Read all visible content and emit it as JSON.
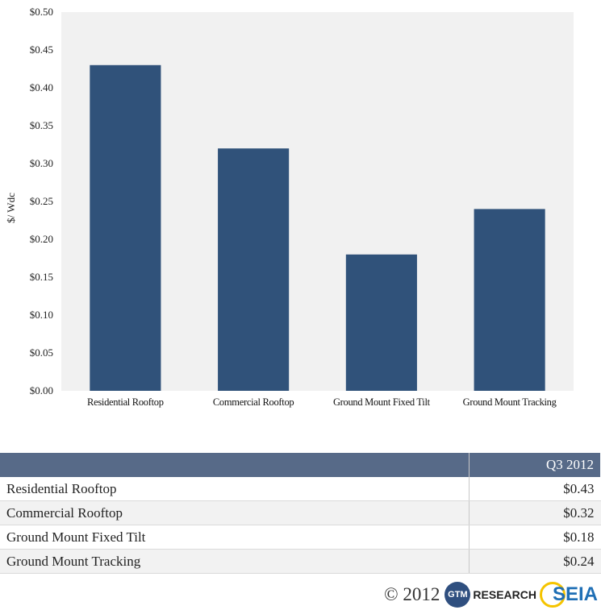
{
  "chart_data": {
    "type": "bar",
    "categories": [
      "Residential Rooftop",
      "Commercial Rooftop",
      "Ground Mount Fixed Tilt",
      "Ground Mount Tracking"
    ],
    "values": [
      0.43,
      0.32,
      0.18,
      0.24
    ],
    "ylabel": "$/ Wdc",
    "ylim": [
      0,
      0.5
    ],
    "yticks": [
      "$0.00",
      "$0.05",
      "$0.10",
      "$0.15",
      "$0.20",
      "$0.25",
      "$0.30",
      "$0.35",
      "$0.40",
      "$0.45",
      "$0.50"
    ],
    "grid": false,
    "bar_color": "#30527a",
    "plot_background": "#f1f1f1"
  },
  "table": {
    "column_header": "Q3 2012",
    "rows": [
      {
        "label": "Residential Rooftop",
        "value": "$0.43"
      },
      {
        "label": "Commercial Rooftop",
        "value": "$0.32"
      },
      {
        "label": "Ground Mount Fixed Tilt",
        "value": "$0.18"
      },
      {
        "label": "Ground Mount Tracking",
        "value": "$0.24"
      }
    ],
    "header_color": "#576a88"
  },
  "footer": {
    "copyright": "© 2012",
    "gtm_logo_text": "GTM",
    "gtm_research_text": "RESEARCH",
    "seia_logo_text": "SEIA"
  }
}
